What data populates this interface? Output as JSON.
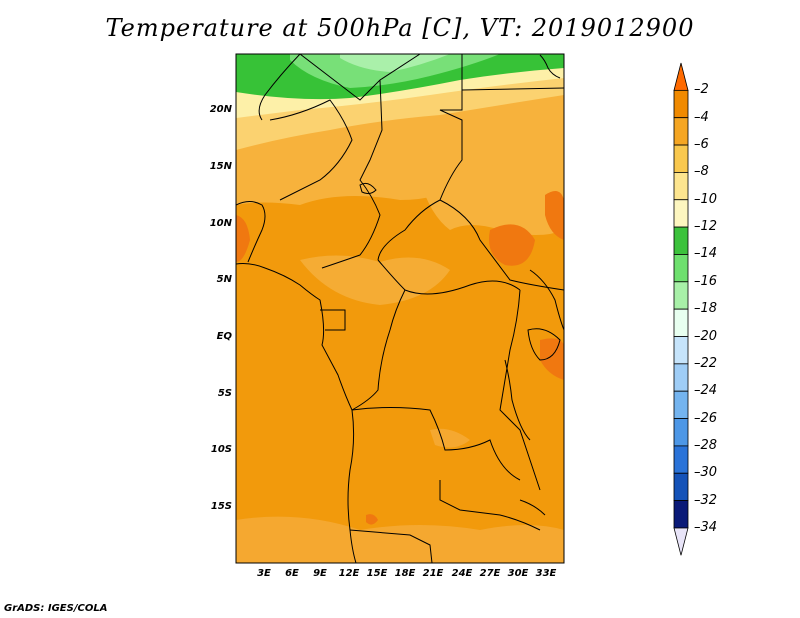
{
  "title": "Temperature at 500hPa [C], VT: 2019012900",
  "credit": "GrADS: IGES/COLA",
  "map": {
    "lat_labels": [
      "20N",
      "15N",
      "10N",
      "5N",
      "EQ",
      "5S",
      "10S",
      "15S"
    ],
    "lon_labels": [
      "3E",
      "6E",
      "9E",
      "12E",
      "15E",
      "18E",
      "21E",
      "24E",
      "27E",
      "30E",
      "33E"
    ]
  },
  "colorbar": {
    "levels": [
      "-2",
      "-4",
      "-6",
      "-8",
      "-10",
      "-12",
      "-14",
      "-16",
      "-18",
      "-20",
      "-22",
      "-24",
      "-26",
      "-28",
      "-30",
      "-32",
      "-34"
    ],
    "colors": [
      "#ff6a00",
      "#f08a00",
      "#f5a623",
      "#f9c84e",
      "#fde58f",
      "#fdf6c0",
      "#3cc23c",
      "#6ee06e",
      "#a8f0a8",
      "#e8fff0",
      "#c6e4fb",
      "#9fcdf6",
      "#74b4ef",
      "#4d97e6",
      "#2a73d8",
      "#1452b8",
      "#0a1a78",
      "#e8e4f8"
    ]
  }
}
